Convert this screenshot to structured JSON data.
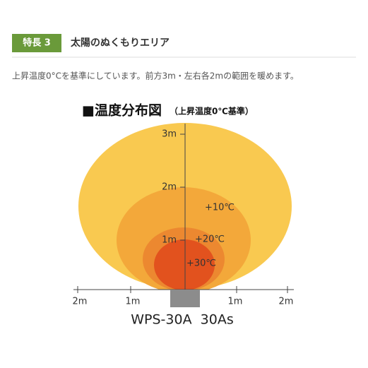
{
  "header": {
    "badge": "特長 3",
    "title": "太陽のぬくもりエリア"
  },
  "description": "上昇温度0°Cを基準にしています。前方3m・左右各2mの範囲を暖めます。",
  "diagram": {
    "title": "■温度分布図",
    "subtitle": "（上昇温度0℃基準）",
    "vertical_labels": [
      "3m",
      "2m",
      "1m"
    ],
    "horizontal_labels": [
      "2m",
      "1m",
      "1m",
      "2m"
    ],
    "zone_labels": [
      "+10℃",
      "+20℃",
      "+30℃"
    ],
    "model": "WPS-30A  30As"
  }
}
